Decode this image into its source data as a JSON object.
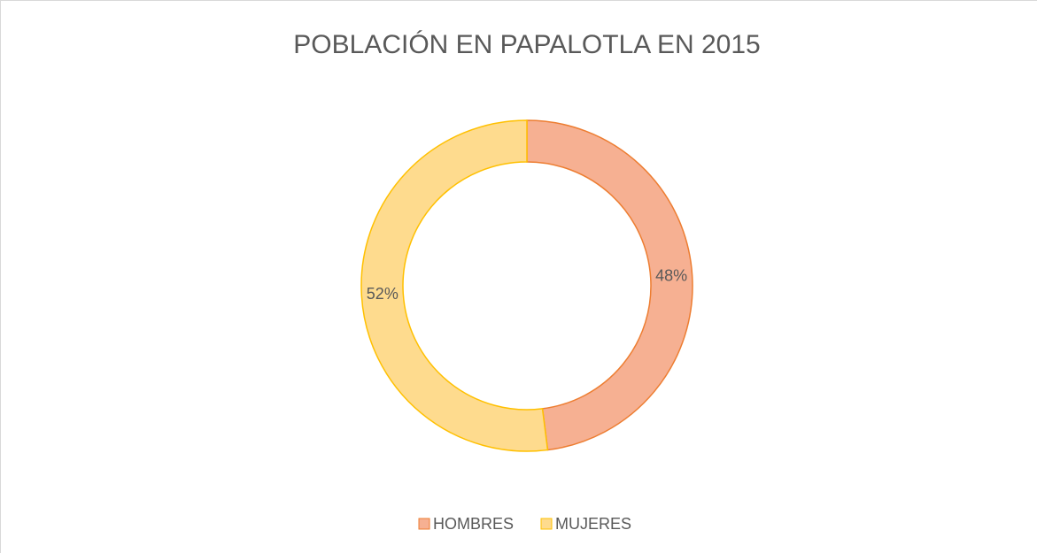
{
  "chart_data": {
    "type": "donut",
    "title": "POBLACIÓN EN PAPALOTLA EN 2015",
    "categories": [
      "HOMBRES",
      "MUJERES"
    ],
    "values": [
      48,
      52
    ],
    "value_labels": [
      "48%",
      "52%"
    ],
    "colors": [
      "#f6b092",
      "#fedb8e"
    ],
    "edge_colors": [
      "#ed7d31",
      "#ffc000"
    ],
    "legend": "bottom"
  }
}
